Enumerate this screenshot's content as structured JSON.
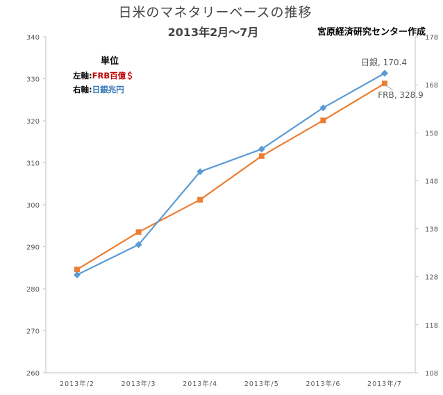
{
  "title": "日米のマネタリーベースの推移",
  "subtitle": "2013年2月～7月",
  "credit": "宮原経済研究センター作成",
  "units": {
    "heading": "単位",
    "left_prefix": "左軸:",
    "left_value": "FRB百億＄",
    "right_prefix": "右軸:",
    "right_value": "日銀兆円"
  },
  "colors": {
    "frb": "#ED7D31",
    "boj": "#5B9BD5",
    "left_unit": "#C00000",
    "right_unit": "#2E75B6"
  },
  "chart_data": {
    "type": "line",
    "categories": [
      "2013年/2",
      "2013年/3",
      "2013年/4",
      "2013年/5",
      "2013年/6",
      "2013年/7"
    ],
    "y_left": {
      "min": 260,
      "max": 340,
      "step": 10,
      "ticks": [
        "260",
        "270",
        "280",
        "290",
        "300",
        "310",
        "320",
        "330",
        "340"
      ]
    },
    "y_right": {
      "min": 108,
      "max": 178,
      "step": 10,
      "ticks": [
        "108",
        "118",
        "128",
        "138",
        "148",
        "158",
        "168",
        "178"
      ]
    },
    "series": [
      {
        "key": "frb",
        "axis": "left",
        "marker": "square",
        "values": [
          284.6,
          293.5,
          301.2,
          311.6,
          320.1,
          328.9
        ]
      },
      {
        "key": "boj",
        "axis": "right",
        "marker": "diamond",
        "values": [
          128.4,
          134.7,
          149.9,
          154.6,
          163.2,
          170.4
        ]
      }
    ],
    "end_labels": {
      "boj": "日銀, 170.4",
      "frb": "FRB, 328.9"
    },
    "grid": false,
    "legend": "none"
  }
}
